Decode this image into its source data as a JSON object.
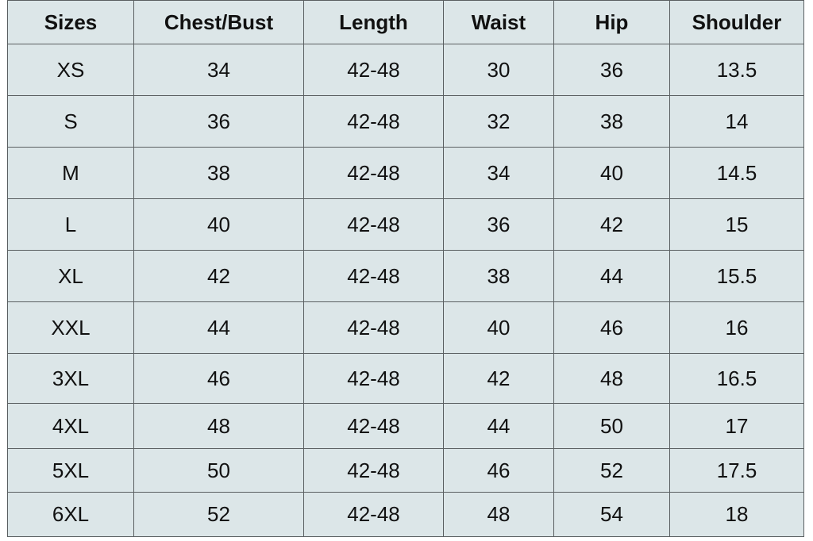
{
  "table": {
    "headers": [
      "Sizes",
      "Chest/Bust",
      "Length",
      "Waist",
      "Hip",
      "Shoulder"
    ],
    "rows": [
      [
        "XS",
        "34",
        "42-48",
        "30",
        "36",
        "13.5"
      ],
      [
        "S",
        "36",
        "42-48",
        "32",
        "38",
        "14"
      ],
      [
        "M",
        "38",
        "42-48",
        "34",
        "40",
        "14.5"
      ],
      [
        "L",
        "40",
        "42-48",
        "36",
        "42",
        "15"
      ],
      [
        "XL",
        "42",
        "42-48",
        "38",
        "44",
        "15.5"
      ],
      [
        "XXL",
        "44",
        "42-48",
        "40",
        "46",
        "16"
      ],
      [
        "3XL",
        "46",
        "42-48",
        "42",
        "48",
        "16.5"
      ],
      [
        "4XL",
        "48",
        "42-48",
        "44",
        "50",
        "17"
      ],
      [
        "5XL",
        "50",
        "42-48",
        "46",
        "52",
        "17.5"
      ],
      [
        "6XL",
        "52",
        "42-48",
        "48",
        "54",
        "18"
      ]
    ]
  },
  "colors": {
    "background": "#dce6e8",
    "border": "#5a5f61"
  }
}
